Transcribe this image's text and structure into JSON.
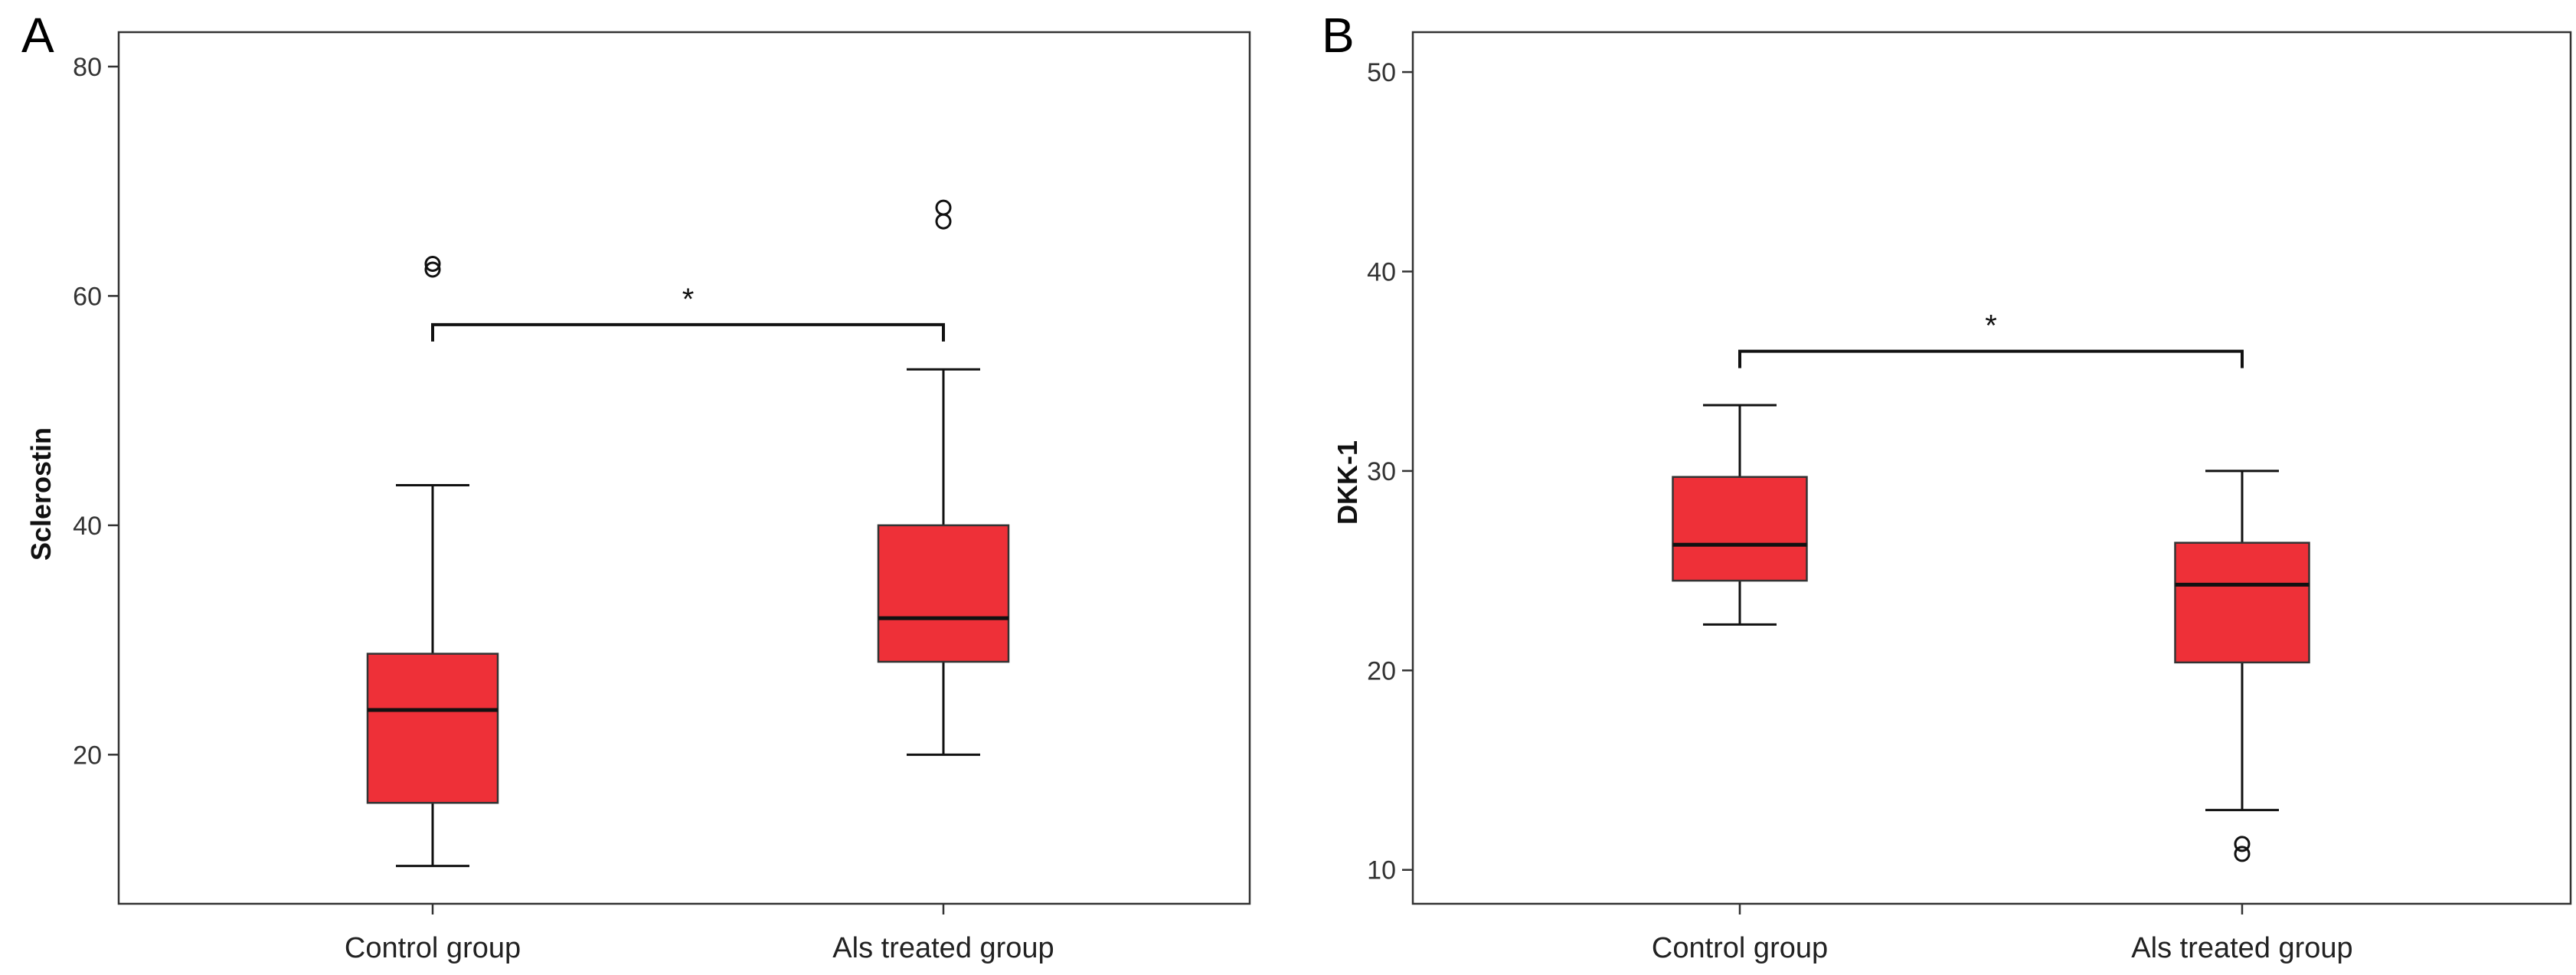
{
  "colors": {
    "box_fill": "#ee3038",
    "box_stroke": "#333333",
    "median": "#111111",
    "whisker": "#111111",
    "frame": "#333333"
  },
  "chart_data": [
    {
      "panel": "A",
      "type": "boxplot",
      "ylabel": "Sclerostin",
      "xlabel": "",
      "ylim": [
        7,
        83
      ],
      "yticks": [
        20,
        40,
        60,
        80
      ],
      "categories": [
        "Control group",
        "Als treated group"
      ],
      "boxes": [
        {
          "category": "Control group",
          "whisker_low": 10.3,
          "q1": 15.8,
          "median": 23.9,
          "q3": 28.8,
          "whisker_high": 43.5,
          "outliers": [
            62.3,
            62.8
          ]
        },
        {
          "category": "Als treated group",
          "whisker_low": 20.0,
          "q1": 28.1,
          "median": 31.9,
          "q3": 40.0,
          "whisker_high": 53.6,
          "outliers": [
            66.5,
            67.7
          ]
        }
      ],
      "significance": {
        "from": "Control group",
        "to": "Als treated group",
        "label": "*",
        "bracket_y": 57.5
      }
    },
    {
      "panel": "B",
      "type": "boxplot",
      "ylabel": "DKK-1",
      "xlabel": "",
      "ylim": [
        8.3,
        52
      ],
      "yticks": [
        10,
        20,
        30,
        40,
        50
      ],
      "categories": [
        "Control group",
        "Als treated group"
      ],
      "boxes": [
        {
          "category": "Control group",
          "whisker_low": 22.3,
          "q1": 24.5,
          "median": 26.3,
          "q3": 29.7,
          "whisker_high": 33.3,
          "outliers": []
        },
        {
          "category": "Als treated group",
          "whisker_low": 13.0,
          "q1": 20.4,
          "median": 24.3,
          "q3": 26.4,
          "whisker_high": 30.0,
          "outliers": [
            10.8,
            11.3
          ]
        }
      ],
      "significance": {
        "from": "Control group",
        "to": "Als treated group",
        "label": "*",
        "bracket_y": 36.0
      }
    }
  ]
}
